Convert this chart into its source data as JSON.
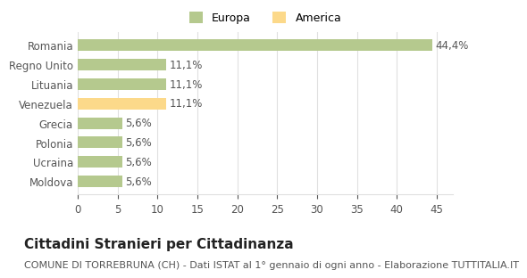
{
  "categories": [
    "Moldova",
    "Ucraina",
    "Polonia",
    "Grecia",
    "Venezuela",
    "Lituania",
    "Regno Unito",
    "Romania"
  ],
  "values": [
    5.6,
    5.6,
    5.6,
    5.6,
    11.1,
    11.1,
    11.1,
    44.4
  ],
  "labels": [
    "5,6%",
    "5,6%",
    "5,6%",
    "5,6%",
    "11,1%",
    "11,1%",
    "11,1%",
    "44,4%"
  ],
  "colors": [
    "#b5c98e",
    "#b5c98e",
    "#b5c98e",
    "#b5c98e",
    "#fcd98a",
    "#b5c98e",
    "#b5c98e",
    "#b5c98e"
  ],
  "legend_items": [
    {
      "label": "Europa",
      "color": "#b5c98e"
    },
    {
      "label": "America",
      "color": "#fcd98a"
    }
  ],
  "title": "Cittadini Stranieri per Cittadinanza",
  "subtitle": "COMUNE DI TORREBRUNA (CH) - Dati ISTAT al 1° gennaio di ogni anno - Elaborazione TUTTITALIA.IT",
  "xlim": [
    0,
    47
  ],
  "xticks": [
    0,
    5,
    10,
    15,
    20,
    25,
    30,
    35,
    40,
    45
  ],
  "grid_color": "#e0e0e0",
  "bar_height": 0.6,
  "label_fontsize": 8.5,
  "title_fontsize": 11,
  "subtitle_fontsize": 8,
  "axis_label_fontsize": 8.5,
  "bg_color": "#ffffff"
}
